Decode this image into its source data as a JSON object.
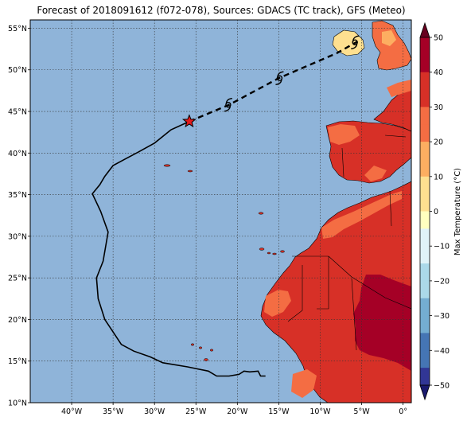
{
  "title": "Forecast of 2018091612 (f072-078), Sources: GDACS (TC track), GFS (Meteo)",
  "map": {
    "lon_range": [
      -45,
      1
    ],
    "lat_range": [
      10,
      56
    ],
    "lat_ticks": [
      {
        "value": 55,
        "label": "55°N"
      },
      {
        "value": 50,
        "label": "50°N"
      },
      {
        "value": 45,
        "label": "45°N"
      },
      {
        "value": 40,
        "label": "40°N"
      },
      {
        "value": 35,
        "label": "35°N"
      },
      {
        "value": 30,
        "label": "30°N"
      },
      {
        "value": 25,
        "label": "25°N"
      },
      {
        "value": 20,
        "label": "20°N"
      },
      {
        "value": 15,
        "label": "15°N"
      },
      {
        "value": 10,
        "label": "10°N"
      }
    ],
    "lon_ticks": [
      {
        "value": -40,
        "label": "40°W"
      },
      {
        "value": -35,
        "label": "35°W"
      },
      {
        "value": -30,
        "label": "30°W"
      },
      {
        "value": -25,
        "label": "25°W"
      },
      {
        "value": -20,
        "label": "20°W"
      },
      {
        "value": -15,
        "label": "15°W"
      },
      {
        "value": -10,
        "label": "10°W"
      },
      {
        "value": -5,
        "label": "5°W"
      },
      {
        "value": 0,
        "label": "0°"
      }
    ],
    "ocean_color": "#8fb4d9",
    "past_track": [
      [
        -25.8,
        43.8
      ],
      [
        -28,
        42.8
      ],
      [
        -30,
        41.2
      ],
      [
        -32,
        40.1
      ],
      [
        -33.5,
        39.3
      ],
      [
        -35,
        38.5
      ],
      [
        -36,
        37.2
      ],
      [
        -36.6,
        36.2
      ],
      [
        -37.5,
        35.1
      ],
      [
        -36.5,
        33
      ],
      [
        -35.6,
        30.5
      ],
      [
        -36.2,
        27
      ],
      [
        -37,
        25
      ],
      [
        -36.8,
        22.5
      ],
      [
        -36,
        20
      ],
      [
        -35,
        18.5
      ],
      [
        -34,
        17
      ],
      [
        -32.5,
        16.2
      ],
      [
        -30.5,
        15.5
      ],
      [
        -29,
        14.8
      ],
      [
        -26,
        14.3
      ],
      [
        -23.5,
        13.8
      ],
      [
        -22.5,
        13.2
      ],
      [
        -21,
        13.2
      ],
      [
        -19.8,
        13.4
      ],
      [
        -19.2,
        13.8
      ],
      [
        -18.5,
        13.7
      ],
      [
        -17.5,
        13.8
      ],
      [
        -17.2,
        13.2
      ],
      [
        -16.6,
        13.2
      ]
    ],
    "forecast_track": [
      [
        -25.8,
        43.8
      ],
      [
        -21,
        45.8
      ],
      [
        -15,
        49
      ],
      [
        -8,
        52
      ],
      [
        -5.5,
        53.4
      ]
    ],
    "current_position": [
      -25.8,
      43.8
    ],
    "storm_symbols": [
      [
        -21.1,
        45.8
      ],
      [
        -14.9,
        49
      ],
      [
        -5.8,
        53.3
      ]
    ],
    "track_color": "#000000",
    "marker_color": "#e31a1c"
  },
  "colorbar": {
    "label": "Max Temperature (°C)",
    "ticks": [
      "50",
      "40",
      "30",
      "20",
      "10",
      "0",
      "−10",
      "−20",
      "−30",
      "−40",
      "−50"
    ],
    "colors": [
      "#67001f",
      "#a50026",
      "#d73027",
      "#f46d43",
      "#fdae61",
      "#fee090",
      "#ffffbf",
      "#e0f3f8",
      "#abd9e9",
      "#74add1",
      "#4575b4",
      "#313695",
      "#1a1a6e"
    ]
  }
}
